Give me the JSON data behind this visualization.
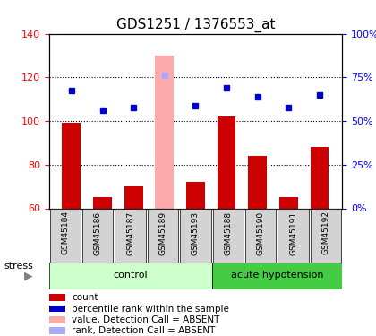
{
  "title": "GDS1251 / 1376553_at",
  "samples": [
    "GSM45184",
    "GSM45186",
    "GSM45187",
    "GSM45189",
    "GSM45193",
    "GSM45188",
    "GSM45190",
    "GSM45191",
    "GSM45192"
  ],
  "groups": [
    "control",
    "control",
    "control",
    "control",
    "control",
    "acute hypotension",
    "acute hypotension",
    "acute hypotension",
    "acute hypotension"
  ],
  "count_values": [
    99,
    65,
    70,
    130,
    72,
    102,
    84,
    65,
    88
  ],
  "rank_values": [
    114,
    105,
    106,
    121,
    107,
    115,
    111,
    106,
    112
  ],
  "absent_indices": [
    3
  ],
  "ylim_left": [
    60,
    140
  ],
  "ylim_right": [
    0,
    100
  ],
  "yticks_left": [
    60,
    80,
    100,
    120,
    140
  ],
  "yticks_right": [
    0,
    25,
    50,
    75,
    100
  ],
  "yticklabels_right": [
    "0%",
    "25%",
    "50%",
    "75%",
    "100%"
  ],
  "bar_color": "#cc0000",
  "bar_absent_color": "#ffaaaa",
  "rank_color": "#0000cc",
  "rank_absent_color": "#aaaaff",
  "group_colors": {
    "control": "#ccffcc",
    "acute hypotension": "#44cc44"
  },
  "group_label_color": "#000000",
  "stress_label": "stress",
  "control_label": "control",
  "acute_label": "acute hypotension",
  "legend_items": [
    {
      "label": "count",
      "color": "#cc0000",
      "marker": "s"
    },
    {
      "label": "percentile rank within the sample",
      "color": "#0000cc",
      "marker": "s"
    },
    {
      "label": "value, Detection Call = ABSENT",
      "color": "#ffaaaa",
      "marker": "s"
    },
    {
      "label": "rank, Detection Call = ABSENT",
      "color": "#aaaaff",
      "marker": "s"
    }
  ],
  "dotted_line_color": "#000000",
  "xlabel_fontsize": 8,
  "title_fontsize": 11
}
